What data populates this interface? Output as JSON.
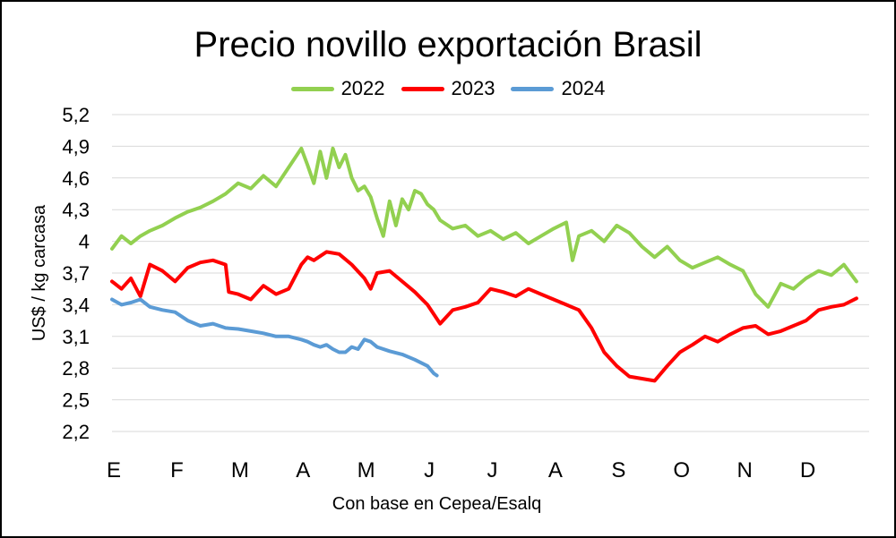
{
  "chart_data": {
    "type": "line",
    "title": "Precio novillo exportación Brasil",
    "ylabel": "US$ / kg carcasa",
    "xlabel": "Con base en Cepea/Esalq",
    "ylim": [
      2.2,
      5.2
    ],
    "yticks": [
      "5,2",
      "4,9",
      "4,6",
      "4,3",
      "4",
      "3,7",
      "3,4",
      "3,1",
      "2,8",
      "2,5",
      "2,2"
    ],
    "ytick_values": [
      5.2,
      4.9,
      4.6,
      4.3,
      4.0,
      3.7,
      3.4,
      3.1,
      2.8,
      2.5,
      2.2
    ],
    "months": [
      "E",
      "F",
      "M",
      "A",
      "M",
      "J",
      "J",
      "A",
      "S",
      "O",
      "N",
      "D"
    ],
    "grid": true,
    "legend_position": "top",
    "x_unit": "month index (0 = start of E)",
    "series": [
      {
        "name": "2022",
        "color": "#92d050",
        "x": [
          0.0,
          0.15,
          0.3,
          0.45,
          0.6,
          0.8,
          1.0,
          1.2,
          1.4,
          1.6,
          1.8,
          2.0,
          2.2,
          2.4,
          2.6,
          2.8,
          3.0,
          3.1,
          3.2,
          3.3,
          3.4,
          3.5,
          3.6,
          3.7,
          3.8,
          3.9,
          4.0,
          4.1,
          4.2,
          4.3,
          4.4,
          4.5,
          4.6,
          4.7,
          4.8,
          4.9,
          5.0,
          5.1,
          5.2,
          5.4,
          5.6,
          5.8,
          6.0,
          6.2,
          6.4,
          6.6,
          6.8,
          7.0,
          7.2,
          7.3,
          7.4,
          7.6,
          7.8,
          8.0,
          8.2,
          8.4,
          8.6,
          8.8,
          9.0,
          9.2,
          9.4,
          9.6,
          9.8,
          10.0,
          10.2,
          10.4,
          10.6,
          10.8,
          11.0,
          11.2,
          11.4,
          11.6,
          11.8
        ],
        "values": [
          3.93,
          4.05,
          3.98,
          4.05,
          4.1,
          4.15,
          4.22,
          4.28,
          4.32,
          4.38,
          4.45,
          4.55,
          4.5,
          4.62,
          4.52,
          4.7,
          4.88,
          4.72,
          4.55,
          4.85,
          4.6,
          4.88,
          4.7,
          4.82,
          4.6,
          4.48,
          4.52,
          4.42,
          4.22,
          4.05,
          4.38,
          4.15,
          4.4,
          4.3,
          4.48,
          4.45,
          4.35,
          4.3,
          4.2,
          4.12,
          4.15,
          4.05,
          4.1,
          4.02,
          4.08,
          3.98,
          4.05,
          4.12,
          4.18,
          3.82,
          4.05,
          4.1,
          4.0,
          4.15,
          4.08,
          3.95,
          3.85,
          3.95,
          3.82,
          3.75,
          3.8,
          3.85,
          3.78,
          3.72,
          3.5,
          3.38,
          3.6,
          3.55,
          3.65,
          3.72,
          3.68,
          3.78,
          3.62
        ]
      },
      {
        "name": "2023",
        "color": "#ff0000",
        "x": [
          0.0,
          0.15,
          0.3,
          0.45,
          0.6,
          0.8,
          1.0,
          1.2,
          1.4,
          1.6,
          1.8,
          1.85,
          2.0,
          2.2,
          2.4,
          2.6,
          2.8,
          3.0,
          3.1,
          3.2,
          3.4,
          3.6,
          3.8,
          4.0,
          4.1,
          4.2,
          4.4,
          4.6,
          4.8,
          5.0,
          5.2,
          5.4,
          5.6,
          5.8,
          6.0,
          6.2,
          6.4,
          6.6,
          6.8,
          7.0,
          7.2,
          7.4,
          7.6,
          7.8,
          8.0,
          8.2,
          8.4,
          8.6,
          8.8,
          9.0,
          9.2,
          9.4,
          9.6,
          9.8,
          10.0,
          10.2,
          10.4,
          10.6,
          10.8,
          11.0,
          11.2,
          11.4,
          11.6,
          11.8
        ],
        "values": [
          3.62,
          3.55,
          3.65,
          3.48,
          3.78,
          3.72,
          3.62,
          3.75,
          3.8,
          3.82,
          3.78,
          3.52,
          3.5,
          3.45,
          3.58,
          3.5,
          3.55,
          3.78,
          3.85,
          3.82,
          3.9,
          3.88,
          3.78,
          3.65,
          3.55,
          3.7,
          3.72,
          3.62,
          3.52,
          3.4,
          3.22,
          3.35,
          3.38,
          3.42,
          3.55,
          3.52,
          3.48,
          3.55,
          3.5,
          3.45,
          3.4,
          3.35,
          3.18,
          2.95,
          2.82,
          2.72,
          2.7,
          2.68,
          2.82,
          2.95,
          3.02,
          3.1,
          3.05,
          3.12,
          3.18,
          3.2,
          3.12,
          3.15,
          3.2,
          3.25,
          3.35,
          3.38,
          3.4,
          3.46
        ]
      },
      {
        "name": "2024",
        "color": "#5b9bd5",
        "x": [
          0.0,
          0.15,
          0.3,
          0.45,
          0.6,
          0.8,
          1.0,
          1.2,
          1.4,
          1.6,
          1.8,
          2.0,
          2.2,
          2.4,
          2.6,
          2.8,
          3.0,
          3.1,
          3.2,
          3.3,
          3.4,
          3.5,
          3.6,
          3.7,
          3.8,
          3.9,
          4.0,
          4.1,
          4.2,
          4.4,
          4.6,
          4.8,
          5.0,
          5.1,
          5.15
        ],
        "values": [
          3.45,
          3.4,
          3.42,
          3.45,
          3.38,
          3.35,
          3.33,
          3.25,
          3.2,
          3.22,
          3.18,
          3.17,
          3.15,
          3.13,
          3.1,
          3.1,
          3.07,
          3.05,
          3.02,
          3.0,
          3.02,
          2.98,
          2.95,
          2.95,
          3.0,
          2.98,
          3.07,
          3.05,
          3.0,
          2.96,
          2.93,
          2.88,
          2.82,
          2.75,
          2.73
        ]
      }
    ]
  }
}
